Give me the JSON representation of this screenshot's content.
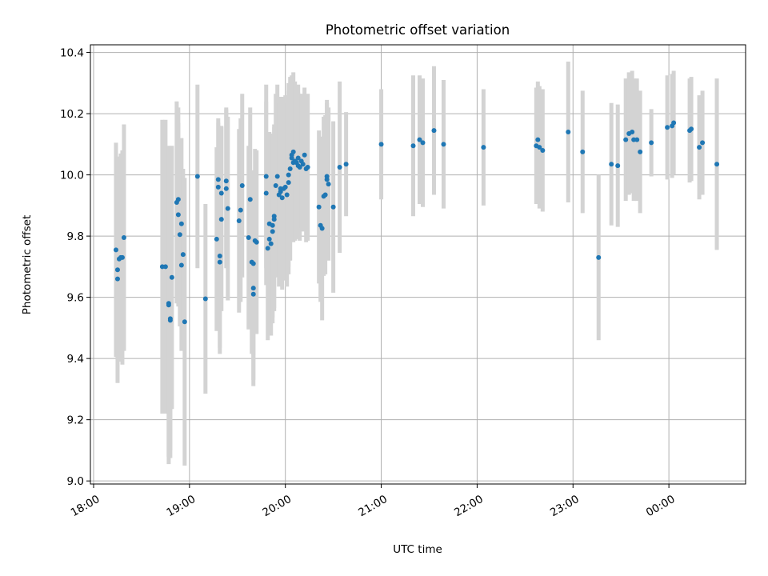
{
  "chart_data": {
    "type": "scatter",
    "title": "Photometric offset variation",
    "xlabel": "UTC time",
    "ylabel": "Photometric offset",
    "x_unit": "UTC clock time (times after 24:00 fall on the next day)",
    "xlim": [
      "17:58",
      "24:48"
    ],
    "ylim": [
      8.99,
      10.425
    ],
    "x_ticks": [
      "18:00",
      "19:00",
      "20:00",
      "21:00",
      "22:00",
      "23:00",
      "24:00"
    ],
    "x_tick_labels": [
      "18:00",
      "19:00",
      "20:00",
      "21:00",
      "22:00",
      "23:00",
      "00:00"
    ],
    "y_ticks": [
      9.0,
      9.2,
      9.4,
      9.6,
      9.8,
      10.0,
      10.2,
      10.4
    ],
    "y_tick_labels": [
      "9.0",
      "9.2",
      "9.4",
      "9.6",
      "9.8",
      "10.0",
      "10.2",
      "10.4"
    ],
    "grid": true,
    "legend": false,
    "colors": {
      "points": "#1f77b4",
      "errorbars": "#d3d3d3"
    },
    "series": [
      {
        "columns": [
          "time",
          "offset",
          "error"
        ],
        "points": [
          [
            "18:14",
            9.755,
            0.35
          ],
          [
            "18:15",
            9.69,
            0.37
          ],
          [
            "18:15",
            9.66,
            0.26
          ],
          [
            "18:16",
            9.725,
            0.33
          ],
          [
            "18:17",
            9.73,
            0.34
          ],
          [
            "18:18",
            9.73,
            0.35
          ],
          [
            "18:19",
            9.795,
            0.37
          ],
          [
            "18:43",
            9.7,
            0.48
          ],
          [
            "18:45",
            9.7,
            0.48
          ],
          [
            "18:47",
            9.575,
            0.52
          ],
          [
            "18:47",
            9.58,
            0.5
          ],
          [
            "18:48",
            9.53,
            0.43
          ],
          [
            "18:48",
            9.525,
            0.45
          ],
          [
            "18:49",
            9.665,
            0.43
          ],
          [
            "18:52",
            9.91,
            0.33
          ],
          [
            "18:53",
            9.92,
            0.3
          ],
          [
            "18:53",
            9.87,
            0.3
          ],
          [
            "18:54",
            9.805,
            0.3
          ],
          [
            "18:55",
            9.84,
            0.28
          ],
          [
            "18:55",
            9.705,
            0.28
          ],
          [
            "18:56",
            9.74,
            0.28
          ],
          [
            "18:57",
            9.52,
            0.47
          ],
          [
            "19:05",
            9.995,
            0.3
          ],
          [
            "19:10",
            9.595,
            0.31
          ],
          [
            "19:17",
            9.79,
            0.3
          ],
          [
            "19:18",
            9.985,
            0.2
          ],
          [
            "19:18",
            9.96,
            0.21
          ],
          [
            "19:19",
            9.735,
            0.3
          ],
          [
            "19:19",
            9.715,
            0.3
          ],
          [
            "19:20",
            9.855,
            0.3
          ],
          [
            "19:20",
            9.94,
            0.22
          ],
          [
            "19:23",
            9.955,
            0.26
          ],
          [
            "19:23",
            9.98,
            0.24
          ],
          [
            "19:24",
            9.89,
            0.3
          ],
          [
            "19:31",
            9.85,
            0.3
          ],
          [
            "19:32",
            9.885,
            0.3
          ],
          [
            "19:33",
            9.965,
            0.3
          ],
          [
            "19:37",
            9.795,
            0.3
          ],
          [
            "19:38",
            9.92,
            0.3
          ],
          [
            "19:39",
            9.715,
            0.3
          ],
          [
            "19:40",
            9.71,
            0.3
          ],
          [
            "19:40",
            9.63,
            0.3
          ],
          [
            "19:40",
            9.61,
            0.3
          ],
          [
            "19:41",
            9.785,
            0.3
          ],
          [
            "19:42",
            9.78,
            0.3
          ],
          [
            "19:48",
            9.995,
            0.3
          ],
          [
            "19:48",
            9.94,
            0.3
          ],
          [
            "19:49",
            9.76,
            0.3
          ],
          [
            "19:50",
            9.84,
            0.3
          ],
          [
            "19:50",
            9.79,
            0.3
          ],
          [
            "19:51",
            9.775,
            0.3
          ],
          [
            "19:52",
            9.815,
            0.3
          ],
          [
            "19:52",
            9.835,
            0.3
          ],
          [
            "19:53",
            9.865,
            0.3
          ],
          [
            "19:53",
            9.855,
            0.3
          ],
          [
            "19:54",
            9.965,
            0.3
          ],
          [
            "19:55",
            9.995,
            0.3
          ],
          [
            "19:56",
            9.935,
            0.3
          ],
          [
            "19:57",
            9.955,
            0.3
          ],
          [
            "19:57",
            9.945,
            0.3
          ],
          [
            "19:58",
            9.925,
            0.3
          ],
          [
            "19:59",
            9.955,
            0.3
          ],
          [
            "20:00",
            9.96,
            0.3
          ],
          [
            "20:01",
            9.935,
            0.3
          ],
          [
            "20:02",
            9.975,
            0.3
          ],
          [
            "20:02",
            10.0,
            0.3
          ],
          [
            "20:03",
            10.02,
            0.3
          ],
          [
            "20:04",
            10.055,
            0.26
          ],
          [
            "20:04",
            10.065,
            0.26
          ],
          [
            "20:05",
            10.075,
            0.26
          ],
          [
            "20:05",
            10.04,
            0.26
          ],
          [
            "20:06",
            10.045,
            0.26
          ],
          [
            "20:07",
            10.04,
            0.24
          ],
          [
            "20:08",
            10.055,
            0.24
          ],
          [
            "20:08",
            10.03,
            0.24
          ],
          [
            "20:09",
            10.025,
            0.24
          ],
          [
            "20:10",
            10.045,
            0.22
          ],
          [
            "20:11",
            10.035,
            0.22
          ],
          [
            "20:12",
            10.065,
            0.22
          ],
          [
            "20:13",
            10.02,
            0.24
          ],
          [
            "20:14",
            10.025,
            0.24
          ],
          [
            "20:21",
            9.895,
            0.25
          ],
          [
            "20:22",
            9.835,
            0.25
          ],
          [
            "20:23",
            9.825,
            0.3
          ],
          [
            "20:24",
            9.93,
            0.26
          ],
          [
            "20:25",
            9.935,
            0.26
          ],
          [
            "20:26",
            9.985,
            0.25
          ],
          [
            "20:26",
            9.995,
            0.25
          ],
          [
            "20:27",
            9.97,
            0.25
          ],
          [
            "20:30",
            9.895,
            0.28
          ],
          [
            "20:34",
            10.025,
            0.28
          ],
          [
            "20:38",
            10.035,
            0.17
          ],
          [
            "21:00",
            10.1,
            0.18
          ],
          [
            "21:20",
            10.095,
            0.23
          ],
          [
            "21:24",
            10.115,
            0.21
          ],
          [
            "21:26",
            10.105,
            0.21
          ],
          [
            "21:33",
            10.145,
            0.21
          ],
          [
            "21:39",
            10.1,
            0.21
          ],
          [
            "22:04",
            10.09,
            0.19
          ],
          [
            "22:37",
            10.095,
            0.19
          ],
          [
            "22:38",
            10.115,
            0.19
          ],
          [
            "22:39",
            10.09,
            0.2
          ],
          [
            "22:41",
            10.08,
            0.2
          ],
          [
            "22:57",
            10.14,
            0.23
          ],
          [
            "23:06",
            10.075,
            0.2
          ],
          [
            "23:16",
            9.73,
            0.27
          ],
          [
            "23:24",
            10.035,
            0.2
          ],
          [
            "23:28",
            10.03,
            0.2
          ],
          [
            "23:33",
            10.115,
            0.2
          ],
          [
            "23:35",
            10.135,
            0.2
          ],
          [
            "23:37",
            10.14,
            0.2
          ],
          [
            "23:38",
            10.115,
            0.2
          ],
          [
            "23:40",
            10.115,
            0.2
          ],
          [
            "23:42",
            10.075,
            0.2
          ],
          [
            "23:49",
            10.105,
            0.11
          ],
          [
            "23:59",
            10.155,
            0.17
          ],
          [
            "24:02",
            10.16,
            0.17
          ],
          [
            "24:03",
            10.17,
            0.17
          ],
          [
            "24:13",
            10.145,
            0.17
          ],
          [
            "24:14",
            10.15,
            0.17
          ],
          [
            "24:19",
            10.09,
            0.17
          ],
          [
            "24:21",
            10.105,
            0.17
          ],
          [
            "24:30",
            10.035,
            0.28
          ]
        ]
      }
    ]
  }
}
